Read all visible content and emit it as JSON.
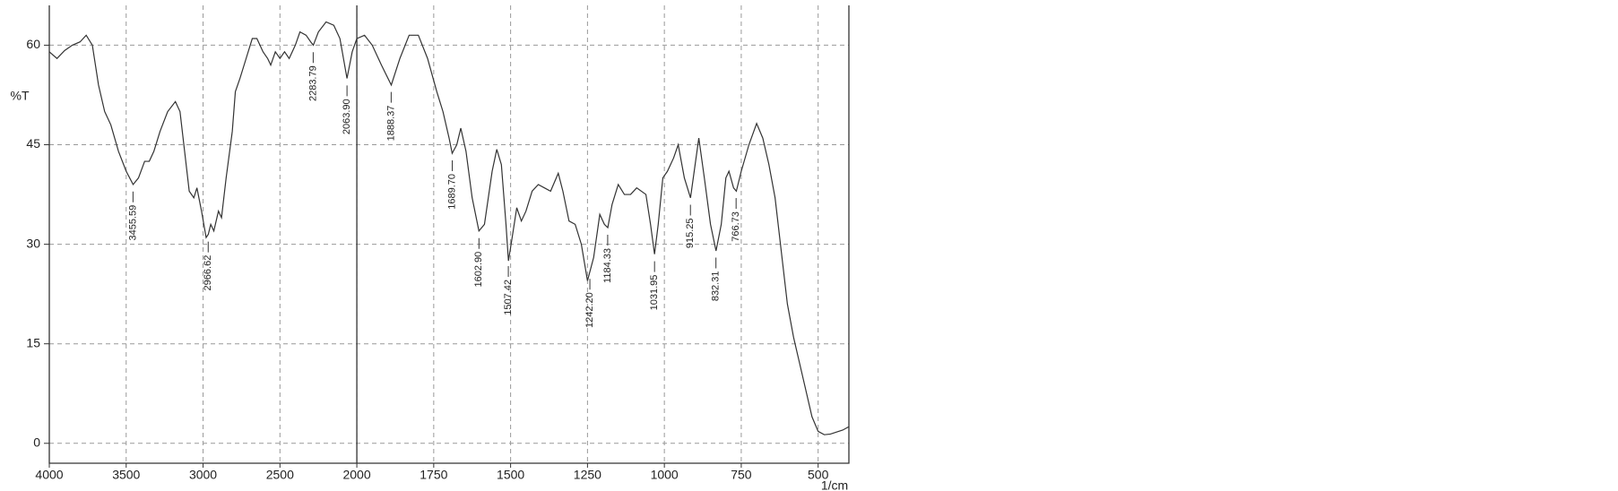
{
  "chart_data": {
    "type": "line",
    "y_label": "%T",
    "x_label": "1/cm",
    "xlim": [
      4000,
      400
    ],
    "xticks": [
      4000,
      3500,
      3000,
      2500,
      2000,
      1750,
      1500,
      1250,
      1000,
      750,
      500
    ],
    "x_break": 2000,
    "ylim": [
      -3,
      66
    ],
    "yticks": [
      0,
      15,
      30,
      45,
      60
    ],
    "grid": true,
    "series": [
      {
        "color": "#333333",
        "x": [
          4000,
          3950,
          3900,
          3850,
          3800,
          3760,
          3720,
          3680,
          3640,
          3600,
          3550,
          3500,
          3455,
          3420,
          3380,
          3350,
          3320,
          3280,
          3230,
          3180,
          3150,
          3120,
          3090,
          3060,
          3040,
          3010,
          2980,
          2966,
          2950,
          2930,
          2900,
          2880,
          2850,
          2810,
          2790,
          2760,
          2720,
          2680,
          2650,
          2610,
          2580,
          2560,
          2530,
          2500,
          2470,
          2440,
          2400,
          2370,
          2330,
          2300,
          2283,
          2250,
          2200,
          2150,
          2110,
          2064,
          2030,
          2000,
          1975,
          1950,
          1920,
          1888,
          1860,
          1830,
          1800,
          1770,
          1740,
          1720,
          1700,
          1690,
          1675,
          1662,
          1645,
          1625,
          1603,
          1585,
          1560,
          1545,
          1530,
          1515,
          1507,
          1495,
          1480,
          1465,
          1450,
          1430,
          1410,
          1390,
          1370,
          1345,
          1330,
          1310,
          1290,
          1270,
          1250,
          1230,
          1210,
          1195,
          1184,
          1170,
          1150,
          1130,
          1110,
          1090,
          1060,
          1045,
          1032,
          1020,
          1005,
          990,
          970,
          955,
          935,
          915,
          900,
          888,
          870,
          850,
          832,
          815,
          800,
          790,
          775,
          766,
          750,
          725,
          700,
          680,
          660,
          640,
          620,
          600,
          580,
          560,
          540,
          520,
          500,
          480,
          460,
          440,
          420,
          400
        ],
        "values": [
          59,
          58,
          59.2,
          60,
          60.5,
          61.5,
          60,
          54,
          50,
          48,
          44,
          41,
          39,
          40,
          42.5,
          42.5,
          44,
          47,
          50,
          51.5,
          50,
          44,
          38,
          37,
          38.5,
          35,
          31,
          31.5,
          33,
          32,
          35,
          34,
          40,
          47,
          53,
          55,
          58,
          61,
          61,
          59,
          58,
          57,
          59,
          58,
          59,
          58,
          60,
          62,
          61.5,
          60.5,
          60,
          62,
          63.5,
          63,
          61,
          55,
          59,
          61,
          61.5,
          60,
          57,
          54,
          58,
          61.5,
          61.5,
          58,
          53,
          50,
          46,
          43.7,
          45,
          47.5,
          44,
          37,
          32,
          33,
          41,
          44.3,
          42,
          33,
          27.5,
          31,
          35.5,
          33.5,
          35,
          38,
          39,
          38.5,
          38,
          40.7,
          38,
          33.5,
          33,
          30,
          24.5,
          28,
          34.5,
          33,
          32.5,
          36,
          39,
          37.5,
          37.5,
          38.5,
          37.5,
          33,
          28.5,
          33,
          40,
          41,
          43,
          45,
          40,
          37,
          42,
          46,
          40,
          33,
          29,
          33,
          40,
          41,
          38.5,
          38,
          41,
          45,
          48.2,
          46,
          42,
          37,
          29,
          21,
          16,
          12,
          8,
          4,
          1.8,
          1.3,
          1.4,
          1.7,
          2,
          2.5
        ]
      }
    ],
    "peaks": [
      3455.59,
      2966.62,
      2283.79,
      {
        "value": 2063.9,
        "label": "2063.90"
      },
      1888.37,
      {
        "value": 1689.7,
        "label": "1689.70"
      },
      {
        "value": 1602.9,
        "label": "1602.90"
      },
      1507.42,
      {
        "value": 1242.2,
        "label": "1242.20"
      },
      1184.33,
      1031.95,
      915.25,
      832.31,
      766.73
    ]
  }
}
